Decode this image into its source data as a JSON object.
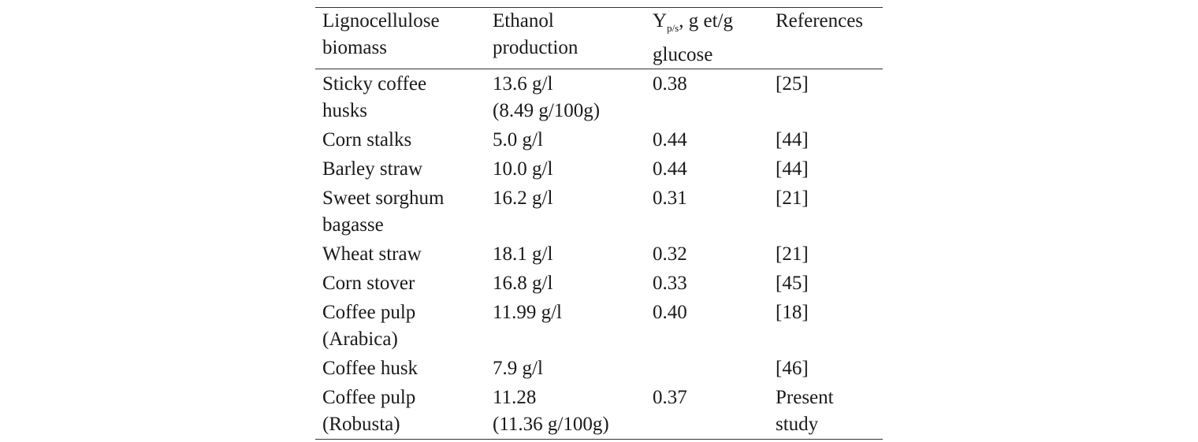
{
  "header": {
    "col1": [
      "Lignocellulose",
      "biomass"
    ],
    "col2": [
      "Ethanol",
      "production"
    ],
    "col3_main": "Y",
    "col3_sub": "p/s",
    "col3_rest": ", g et/g",
    "col3_line2": "glucose",
    "col4": "References"
  },
  "rows": [
    {
      "biomass": [
        "Sticky coffee",
        "husks"
      ],
      "ethanol": [
        "13.6 g/l",
        "(8.49 g/100g)"
      ],
      "yield": "0.38",
      "ref": [
        "[25]"
      ]
    },
    {
      "biomass": [
        "Corn stalks"
      ],
      "ethanol": [
        "5.0 g/l"
      ],
      "yield": "0.44",
      "ref": [
        "[44]"
      ]
    },
    {
      "biomass": [
        "Barley straw"
      ],
      "ethanol": [
        "10.0 g/l"
      ],
      "yield": "0.44",
      "ref": [
        "[44]"
      ]
    },
    {
      "biomass": [
        "Sweet sorghum",
        "bagasse"
      ],
      "ethanol": [
        "16.2 g/l"
      ],
      "yield": "0.31",
      "ref": [
        "[21]"
      ]
    },
    {
      "biomass": [
        "Wheat straw"
      ],
      "ethanol": [
        "18.1 g/l"
      ],
      "yield": "0.32",
      "ref": [
        "[21]"
      ]
    },
    {
      "biomass": [
        "Corn stover"
      ],
      "ethanol": [
        "16.8 g/l"
      ],
      "yield": "0.33",
      "ref": [
        "[45]"
      ]
    },
    {
      "biomass": [
        "Coffee pulp",
        "(Arabica)"
      ],
      "ethanol": [
        "11.99 g/l"
      ],
      "yield": "0.40",
      "ref": [
        "[18]"
      ]
    },
    {
      "biomass": [
        "Coffee husk"
      ],
      "ethanol": [
        "7.9 g/l"
      ],
      "yield": "",
      "ref": [
        "[46]"
      ]
    },
    {
      "biomass": [
        "Coffee pulp",
        "(Robusta)"
      ],
      "ethanol": [
        "11.28",
        "(11.36 g/100g)"
      ],
      "yield": "0.37",
      "ref": [
        "Present",
        "study"
      ]
    }
  ]
}
